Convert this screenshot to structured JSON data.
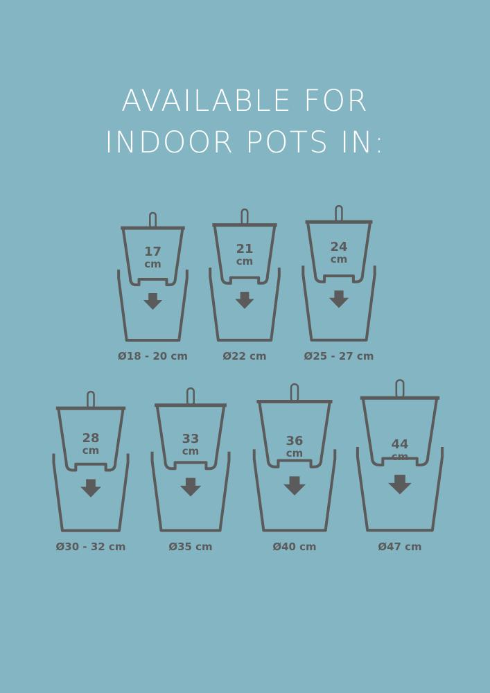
{
  "heading": {
    "line1": "AVAILABLE FOR",
    "line2": "INDOOR POTS IN:"
  },
  "colors": {
    "background": "#83b5c2",
    "text": "#ffffff",
    "icon": "#5b5b5b"
  },
  "pots": [
    {
      "inner_size": "17",
      "unit": "cm",
      "outer_label": "Ø18 - 20 cm"
    },
    {
      "inner_size": "21",
      "unit": "cm",
      "outer_label": "Ø22 cm"
    },
    {
      "inner_size": "24",
      "unit": "cm",
      "outer_label": "Ø25 - 27 cm"
    },
    {
      "inner_size": "28",
      "unit": "cm",
      "outer_label": "Ø30 - 32 cm"
    },
    {
      "inner_size": "33",
      "unit": "cm",
      "outer_label": "Ø35 cm"
    },
    {
      "inner_size": "36",
      "unit": "cm",
      "outer_label": "Ø40 cm"
    },
    {
      "inner_size": "44",
      "unit": "cm",
      "outer_label": "Ø47 cm"
    }
  ]
}
